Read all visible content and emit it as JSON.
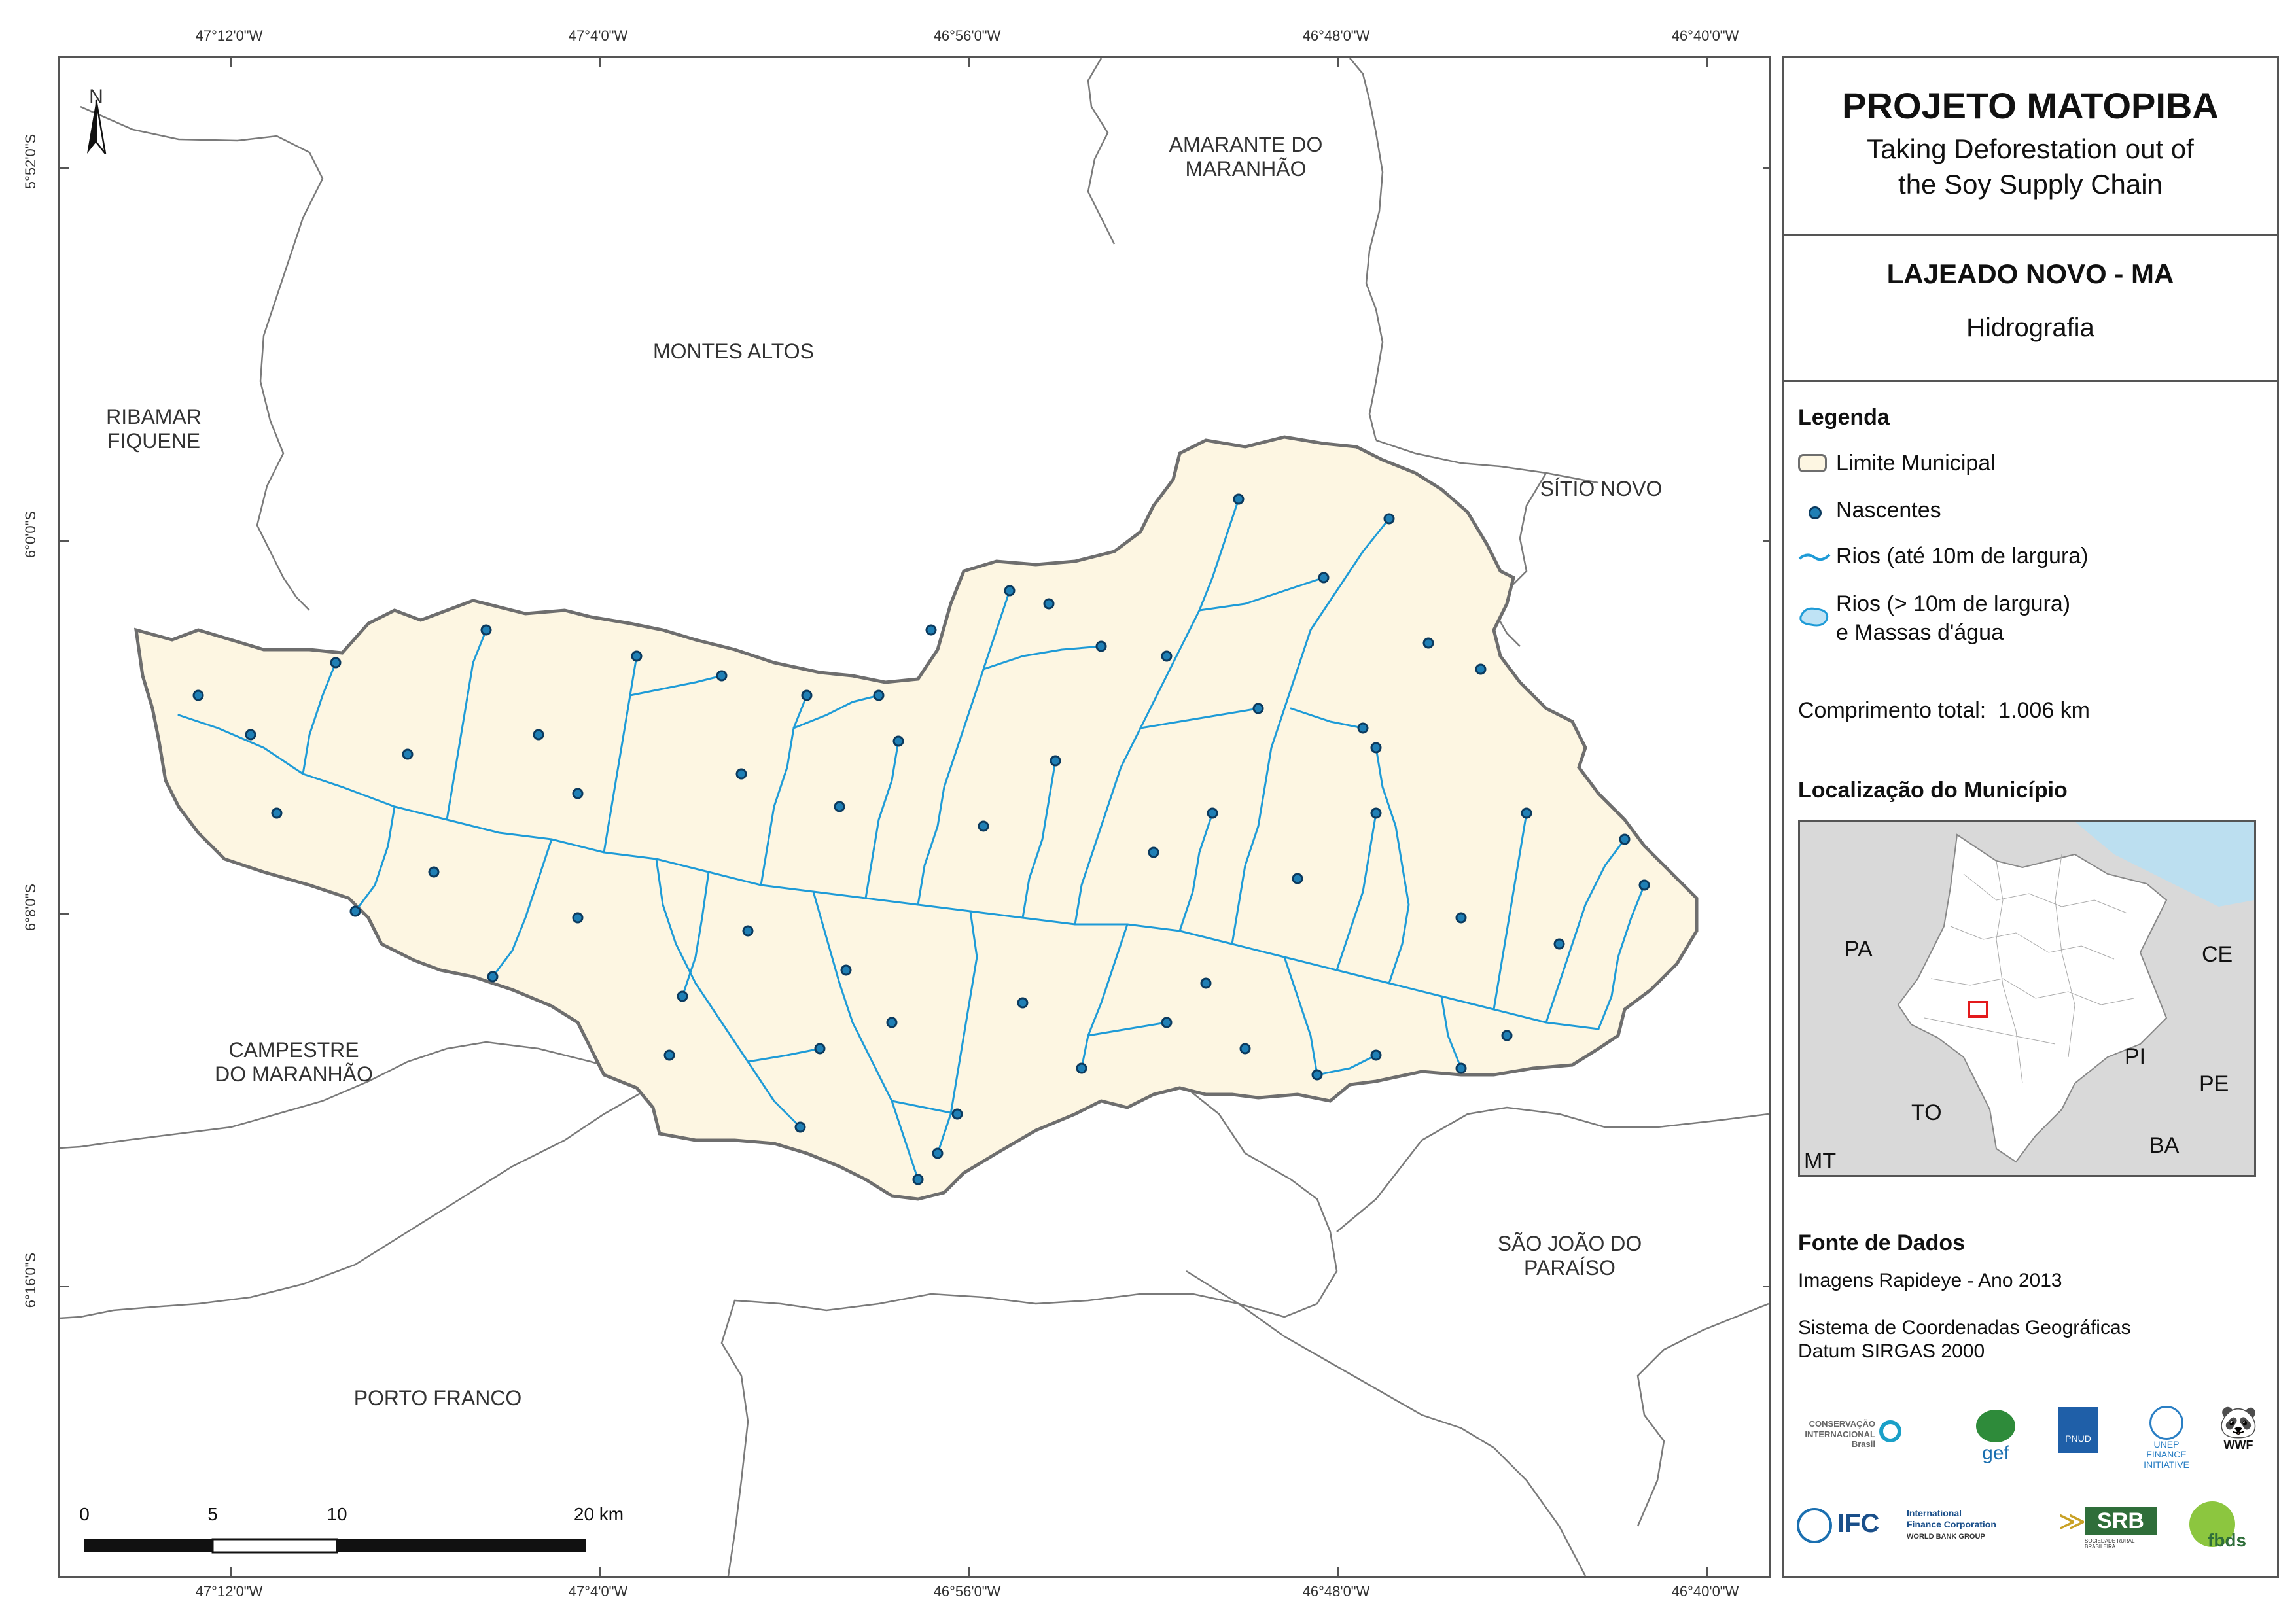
{
  "coordinates": {
    "lon_labels": [
      "47°12'0\"W",
      "47°4'0\"W",
      "46°56'0\"W",
      "46°48'0\"W",
      "46°40'0\"W"
    ],
    "lat_labels": [
      "5°52'0\"S",
      "6°0'0\"S",
      "6°8'0\"S",
      "6°16'0\"S"
    ]
  },
  "map": {
    "north_label": "N",
    "places": [
      {
        "id": "amarante",
        "text": "AMARANTE DO\nMARANHÃO"
      },
      {
        "id": "montes",
        "text": "MONTES ALTOS"
      },
      {
        "id": "ribamar",
        "text": "RIBAMAR\nFIQUENE"
      },
      {
        "id": "sitio",
        "text": "SÍTIO NOVO"
      },
      {
        "id": "campestre",
        "text": "CAMPESTRE\nDO MARANHÃO"
      },
      {
        "id": "saojoao",
        "text": "SÃO JOÃO DO\nPARAÍSO"
      },
      {
        "id": "porto",
        "text": "PORTO FRANCO"
      }
    ],
    "scale": {
      "labels": [
        "0",
        "5",
        "10",
        "20 km"
      ]
    },
    "colors": {
      "municipio_fill": "#fdf6e2",
      "boundary": "#6e6e6e",
      "rios": "#1e9bd7",
      "nascente_fill": "#1f7fb5",
      "nascente_stroke": "#0b3a5e"
    }
  },
  "panel": {
    "title": "PROJETO MATOPIBA",
    "subtitle_1": "Taking Deforestation out of",
    "subtitle_2": "the Soy Supply Chain",
    "map_title": "LAJEADO NOVO - MA",
    "map_theme": "Hidrografia",
    "legend": {
      "heading": "Legenda",
      "items": [
        "Limite Municipal",
        "Nascentes",
        "Rios (até 10m de largura)",
        "Rios (> 10m de largura)",
        "e Massas d'água"
      ],
      "length_label": "Comprimento total:",
      "length_value": "1.006 km"
    },
    "location": {
      "heading": "Localização do Município",
      "states": [
        "PA",
        "CE",
        "PI",
        "PE",
        "TO",
        "BA",
        "MT"
      ]
    },
    "sources": {
      "heading": "Fonte de Dados",
      "line1": "Imagens Rapideye - Ano 2013",
      "line2": "Sistema de Coordenadas Geográficas",
      "line3": "Datum SIRGAS 2000"
    },
    "logos": {
      "ci_1": "CONSERVAÇÃO",
      "ci_2": "INTERNACIONAL",
      "ci_3": "Brasil",
      "gef": "gef",
      "pnud": "PNUD",
      "unep_1": "UNEP",
      "unep_2": "FINANCE",
      "unep_3": "INITIATIVE",
      "wwf": "WWF",
      "ifc": "IFC",
      "ifc_1": "International",
      "ifc_2": "Finance Corporation",
      "ifc_3": "WORLD BANK GROUP",
      "srb": "SRB",
      "srb_sub": "SOCIEDADE RURAL BRASILEIRA",
      "fbds": "fbds"
    }
  }
}
